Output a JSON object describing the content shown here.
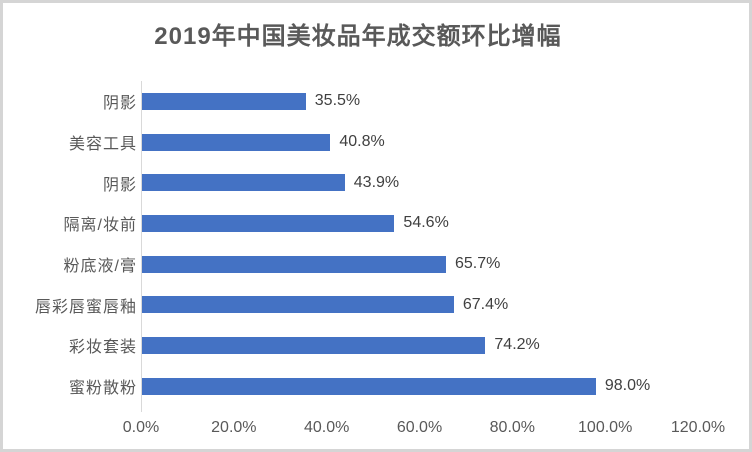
{
  "window": {
    "background": "#ffffff",
    "border_color": "#d5d5d5"
  },
  "chart_data": {
    "type": "bar",
    "orientation": "horizontal",
    "title": "2019年中国美妆品年成交额环比增幅",
    "categories": [
      "阴影",
      "美容工具",
      "阴影",
      "隔离/妆前",
      "粉底液/膏",
      "唇彩唇蜜唇釉",
      "彩妆套装",
      "蜜粉散粉"
    ],
    "values": [
      35.5,
      40.8,
      43.9,
      54.6,
      65.7,
      67.4,
      74.2,
      98.0
    ],
    "value_labels": [
      "35.5%",
      "40.8%",
      "43.9%",
      "54.6%",
      "65.7%",
      "67.4%",
      "74.2%",
      "98.0%"
    ],
    "x_ticks": [
      "0.0%",
      "20.0%",
      "40.0%",
      "60.0%",
      "80.0%",
      "100.0%",
      "120.0%"
    ],
    "xlim": [
      0,
      120
    ],
    "bar_color": "#4472c4",
    "axis_line_color": "#d9d9d9",
    "title_color": "#595959",
    "label_color": "#404040",
    "tick_color": "#595959",
    "grid": false,
    "legend": false,
    "xlabel": "",
    "ylabel": ""
  }
}
